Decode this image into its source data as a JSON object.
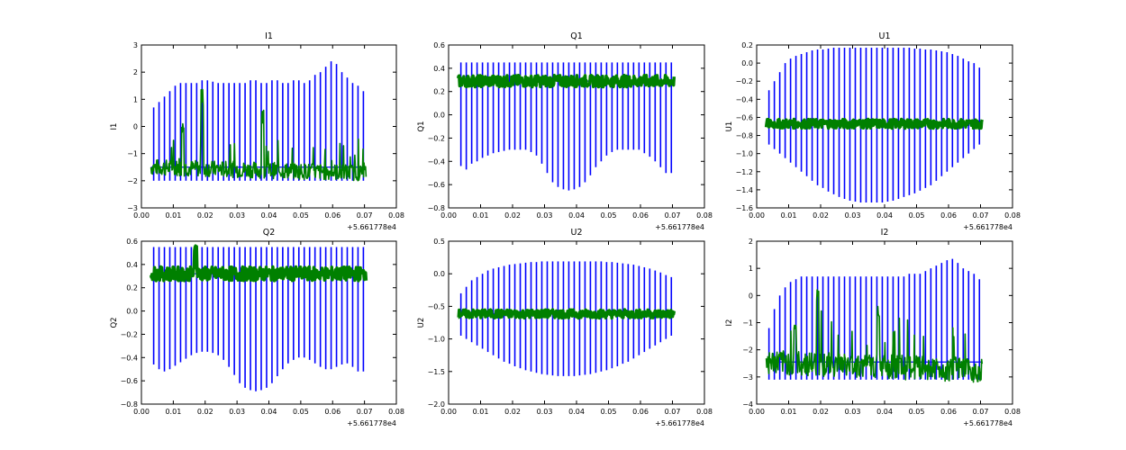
{
  "colors": {
    "series_a": "#0000ff",
    "series_b": "#008000"
  },
  "chart_data": [
    {
      "type": "line",
      "title": "I1",
      "ylabel": "I1",
      "xlim": [
        0.0,
        0.08
      ],
      "ylim": [
        -3,
        3
      ],
      "xticks": [
        "0.00",
        "0.01",
        "0.02",
        "0.03",
        "0.04",
        "0.05",
        "0.06",
        "0.07",
        "0.08"
      ],
      "yticks": [
        "3",
        "2",
        "1",
        "0",
        "−1",
        "−2",
        "−3"
      ],
      "x_offset_label": "+5.661778e4",
      "data_x_range": [
        0.003,
        0.0705
      ],
      "series": [
        {
          "color": "#0000ff",
          "pulse_count": 40,
          "pulse_tops": [
            0.7,
            0.9,
            1.1,
            1.3,
            1.5,
            1.6,
            1.6,
            1.6,
            1.6,
            1.7,
            1.7,
            1.65,
            1.6,
            1.6,
            1.6,
            1.6,
            1.6,
            1.6,
            1.7,
            1.7,
            1.6,
            1.6,
            1.7,
            1.7,
            1.6,
            1.6,
            1.7,
            1.7,
            1.6,
            1.7,
            1.9,
            2.0,
            2.2,
            2.4,
            2.3,
            2.0,
            1.8,
            1.6,
            1.5,
            1.3
          ],
          "pulse_bottom": -2.0
        },
        {
          "color": "#008000",
          "band": [
            -1.8,
            -1.2
          ],
          "peaks": [
            [
              0.013,
              0.1
            ],
            [
              0.019,
              1.5
            ],
            [
              0.038,
              0.6
            ]
          ]
        }
      ]
    },
    {
      "type": "line",
      "title": "Q1",
      "ylabel": "Q1",
      "xlim": [
        0.0,
        0.08
      ],
      "ylim": [
        -0.8,
        0.6
      ],
      "xticks": [
        "0.00",
        "0.01",
        "0.02",
        "0.03",
        "0.04",
        "0.05",
        "0.06",
        "0.07",
        "0.08"
      ],
      "yticks": [
        "0.6",
        "0.4",
        "0.2",
        "0.0",
        "−0.2",
        "−0.4",
        "−0.6",
        "−0.8"
      ],
      "x_offset_label": "+5.661778e4",
      "data_x_range": [
        0.003,
        0.0705
      ],
      "series": [
        {
          "color": "#0000ff",
          "pulse_count": 40,
          "pulse_top": 0.45,
          "pulse_bottoms": [
            -0.44,
            -0.47,
            -0.42,
            -0.4,
            -0.37,
            -0.35,
            -0.33,
            -0.32,
            -0.31,
            -0.3,
            -0.3,
            -0.3,
            -0.3,
            -0.32,
            -0.35,
            -0.42,
            -0.5,
            -0.58,
            -0.62,
            -0.64,
            -0.65,
            -0.64,
            -0.62,
            -0.58,
            -0.52,
            -0.45,
            -0.4,
            -0.35,
            -0.32,
            -0.3,
            -0.3,
            -0.3,
            -0.3,
            -0.3,
            -0.33,
            -0.36,
            -0.4,
            -0.45,
            -0.5,
            -0.5
          ]
        },
        {
          "color": "#008000",
          "band": [
            0.24,
            0.34
          ],
          "peaks": []
        }
      ]
    },
    {
      "type": "line",
      "title": "U1",
      "ylabel": "U1",
      "xlim": [
        0.0,
        0.08
      ],
      "ylim": [
        -1.6,
        0.2
      ],
      "xticks": [
        "0.00",
        "0.01",
        "0.02",
        "0.03",
        "0.04",
        "0.05",
        "0.06",
        "0.07",
        "0.08"
      ],
      "yticks": [
        "0.2",
        "0.0",
        "−0.2",
        "−0.4",
        "−0.6",
        "−0.8",
        "−1.0",
        "−1.2",
        "−1.4",
        "−1.6"
      ],
      "x_offset_label": "+5.661778e4",
      "data_x_range": [
        0.003,
        0.0705
      ],
      "series": [
        {
          "color": "#0000ff",
          "pulse_count": 40,
          "pulse_tops": [
            -0.3,
            -0.2,
            -0.1,
            0.0,
            0.05,
            0.08,
            0.1,
            0.12,
            0.14,
            0.15,
            0.15,
            0.16,
            0.17,
            0.17,
            0.17,
            0.17,
            0.17,
            0.17,
            0.17,
            0.17,
            0.17,
            0.17,
            0.17,
            0.17,
            0.17,
            0.17,
            0.17,
            0.16,
            0.16,
            0.15,
            0.15,
            0.14,
            0.13,
            0.12,
            0.1,
            0.08,
            0.05,
            0.02,
            0.0,
            -0.05
          ],
          "pulse_bottoms": [
            -0.9,
            -0.95,
            -1.0,
            -1.05,
            -1.1,
            -1.15,
            -1.2,
            -1.25,
            -1.3,
            -1.35,
            -1.38,
            -1.42,
            -1.45,
            -1.48,
            -1.5,
            -1.52,
            -1.53,
            -1.54,
            -1.54,
            -1.54,
            -1.54,
            -1.54,
            -1.53,
            -1.52,
            -1.5,
            -1.48,
            -1.46,
            -1.44,
            -1.41,
            -1.38,
            -1.35,
            -1.3,
            -1.25,
            -1.2,
            -1.15,
            -1.1,
            -1.05,
            -1.0,
            -0.95,
            -0.9
          ]
        },
        {
          "color": "#008000",
          "band": [
            -0.72,
            -0.62
          ],
          "peaks": []
        }
      ]
    },
    {
      "type": "line",
      "title": "Q2",
      "ylabel": "Q2",
      "xlim": [
        0.0,
        0.08
      ],
      "ylim": [
        -0.8,
        0.6
      ],
      "xticks": [
        "0.00",
        "0.01",
        "0.02",
        "0.03",
        "0.04",
        "0.05",
        "0.06",
        "0.07",
        "0.08"
      ],
      "yticks": [
        "0.6",
        "0.4",
        "0.2",
        "0.0",
        "−0.2",
        "−0.4",
        "−0.6",
        "−0.8"
      ],
      "x_offset_label": "+5.661778e4",
      "data_x_range": [
        0.003,
        0.0705
      ],
      "series": [
        {
          "color": "#0000ff",
          "pulse_count": 40,
          "pulse_top": 0.55,
          "pulse_bottoms": [
            -0.46,
            -0.5,
            -0.52,
            -0.5,
            -0.47,
            -0.44,
            -0.41,
            -0.38,
            -0.36,
            -0.35,
            -0.35,
            -0.36,
            -0.38,
            -0.42,
            -0.48,
            -0.55,
            -0.62,
            -0.66,
            -0.68,
            -0.69,
            -0.68,
            -0.66,
            -0.62,
            -0.56,
            -0.5,
            -0.45,
            -0.42,
            -0.4,
            -0.4,
            -0.42,
            -0.45,
            -0.48,
            -0.5,
            -0.5,
            -0.48,
            -0.46,
            -0.45,
            -0.48,
            -0.52,
            -0.52
          ]
        },
        {
          "color": "#008000",
          "band": [
            0.26,
            0.38
          ],
          "peaks": [
            [
              0.017,
              0.56
            ]
          ]
        }
      ]
    },
    {
      "type": "line",
      "title": "U2",
      "ylabel": "U2",
      "xlim": [
        0.0,
        0.08
      ],
      "ylim": [
        -2.0,
        0.5
      ],
      "xticks": [
        "0.00",
        "0.01",
        "0.02",
        "0.03",
        "0.04",
        "0.05",
        "0.06",
        "0.07",
        "0.08"
      ],
      "yticks": [
        "0.5",
        "0.0",
        "−0.5",
        "−1.0",
        "−1.5",
        "−2.0"
      ],
      "x_offset_label": "+5.661778e4",
      "data_x_range": [
        0.003,
        0.0705
      ],
      "series": [
        {
          "color": "#0000ff",
          "pulse_count": 40,
          "pulse_tops": [
            -0.3,
            -0.2,
            -0.1,
            -0.05,
            0.0,
            0.05,
            0.08,
            0.1,
            0.12,
            0.14,
            0.15,
            0.16,
            0.17,
            0.18,
            0.18,
            0.19,
            0.19,
            0.19,
            0.19,
            0.19,
            0.19,
            0.19,
            0.19,
            0.19,
            0.19,
            0.19,
            0.19,
            0.18,
            0.18,
            0.17,
            0.16,
            0.15,
            0.14,
            0.12,
            0.1,
            0.08,
            0.05,
            0.02,
            -0.02,
            -0.05
          ],
          "pulse_bottoms": [
            -0.95,
            -1.0,
            -1.05,
            -1.1,
            -1.15,
            -1.2,
            -1.25,
            -1.3,
            -1.35,
            -1.38,
            -1.42,
            -1.45,
            -1.48,
            -1.5,
            -1.52,
            -1.54,
            -1.55,
            -1.56,
            -1.57,
            -1.57,
            -1.57,
            -1.57,
            -1.56,
            -1.55,
            -1.54,
            -1.52,
            -1.5,
            -1.48,
            -1.45,
            -1.42,
            -1.38,
            -1.35,
            -1.3,
            -1.25,
            -1.2,
            -1.15,
            -1.1,
            -1.05,
            -1.0,
            -0.95
          ]
        },
        {
          "color": "#008000",
          "band": [
            -0.68,
            -0.55
          ],
          "peaks": []
        }
      ]
    },
    {
      "type": "line",
      "title": "I2",
      "ylabel": "I2",
      "xlim": [
        0.0,
        0.08
      ],
      "ylim": [
        -4,
        2
      ],
      "xticks": [
        "0.00",
        "0.01",
        "0.02",
        "0.03",
        "0.04",
        "0.05",
        "0.06",
        "0.07",
        "0.08"
      ],
      "yticks": [
        "2",
        "1",
        "0",
        "−1",
        "−2",
        "−3",
        "−4"
      ],
      "x_offset_label": "+5.661778e4",
      "data_x_range": [
        0.003,
        0.0705
      ],
      "series": [
        {
          "color": "#0000ff",
          "pulse_count": 40,
          "pulse_tops": [
            -1.2,
            -0.5,
            0.0,
            0.3,
            0.5,
            0.6,
            0.7,
            0.7,
            0.7,
            0.7,
            0.7,
            0.7,
            0.7,
            0.7,
            0.7,
            0.7,
            0.7,
            0.7,
            0.7,
            0.7,
            0.7,
            0.7,
            0.7,
            0.7,
            0.7,
            0.7,
            0.8,
            0.8,
            0.8,
            0.9,
            1.0,
            1.1,
            1.2,
            1.3,
            1.35,
            1.2,
            1.0,
            0.9,
            0.8,
            0.6
          ],
          "pulse_bottom": -3.1
        },
        {
          "color": "#008000",
          "band": [
            -2.9,
            -2.0
          ],
          "peaks": [
            [
              0.012,
              -1.0
            ],
            [
              0.019,
              0.3
            ],
            [
              0.038,
              -0.3
            ]
          ]
        }
      ]
    }
  ]
}
